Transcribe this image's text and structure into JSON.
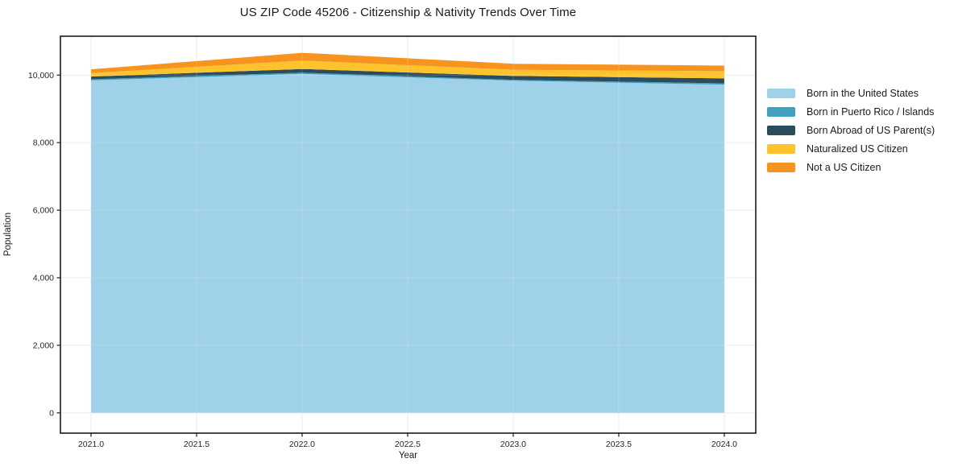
{
  "page": {
    "background": "#ffffff"
  },
  "chart_data": {
    "type": "area",
    "stacked": true,
    "title": "US ZIP Code 45206 - Citizenship & Nativity Trends Over Time",
    "xlabel": "Year",
    "ylabel": "Population",
    "x": [
      2021,
      2022,
      2023,
      2024
    ],
    "series": [
      {
        "name": "Born in the United States",
        "color": "#9fd1e8",
        "values": [
          9845,
          10035,
          9835,
          9715
        ]
      },
      {
        "name": "Born in Puerto Rico / Islands",
        "color": "#41a0c0",
        "values": [
          30,
          35,
          25,
          40
        ]
      },
      {
        "name": "Born Abroad of US Parent(s)",
        "color": "#2b4c5c",
        "values": [
          80,
          110,
          115,
          145
        ]
      },
      {
        "name": "Naturalized US Citizen",
        "color": "#fcc32d",
        "values": [
          100,
          250,
          180,
          215
        ]
      },
      {
        "name": "Not a US Citizen",
        "color": "#f7941f",
        "values": [
          115,
          230,
          180,
          165
        ]
      }
    ],
    "totals": [
      10170,
      10660,
      10335,
      10280
    ],
    "xlim": [
      2020.855,
      2024.149
    ],
    "ylim": [
      -600,
      11150
    ],
    "xticks": {
      "values": [
        2021,
        2021.5,
        2022,
        2022.5,
        2023,
        2023.5,
        2024
      ],
      "labels": [
        "2021.0",
        "2021.5",
        "2022.0",
        "2022.5",
        "2023.0",
        "2023.5",
        "2024.0"
      ]
    },
    "yticks": {
      "values": [
        0,
        2000,
        4000,
        6000,
        8000,
        10000
      ],
      "labels": [
        "0",
        "2,000",
        "4,000",
        "6,000",
        "8,000",
        "10,000"
      ]
    },
    "grid": true,
    "legend_position": "right-outside"
  },
  "styles": {
    "grid_color": "#e7e7e7",
    "grid_overlay_color": "rgba(255,255,255,0.18)",
    "frame_color": "#1a1a1a",
    "tick_color": "#1a1a1a",
    "tick_label_color": "#262626",
    "text_color": "#1a1a1a"
  }
}
